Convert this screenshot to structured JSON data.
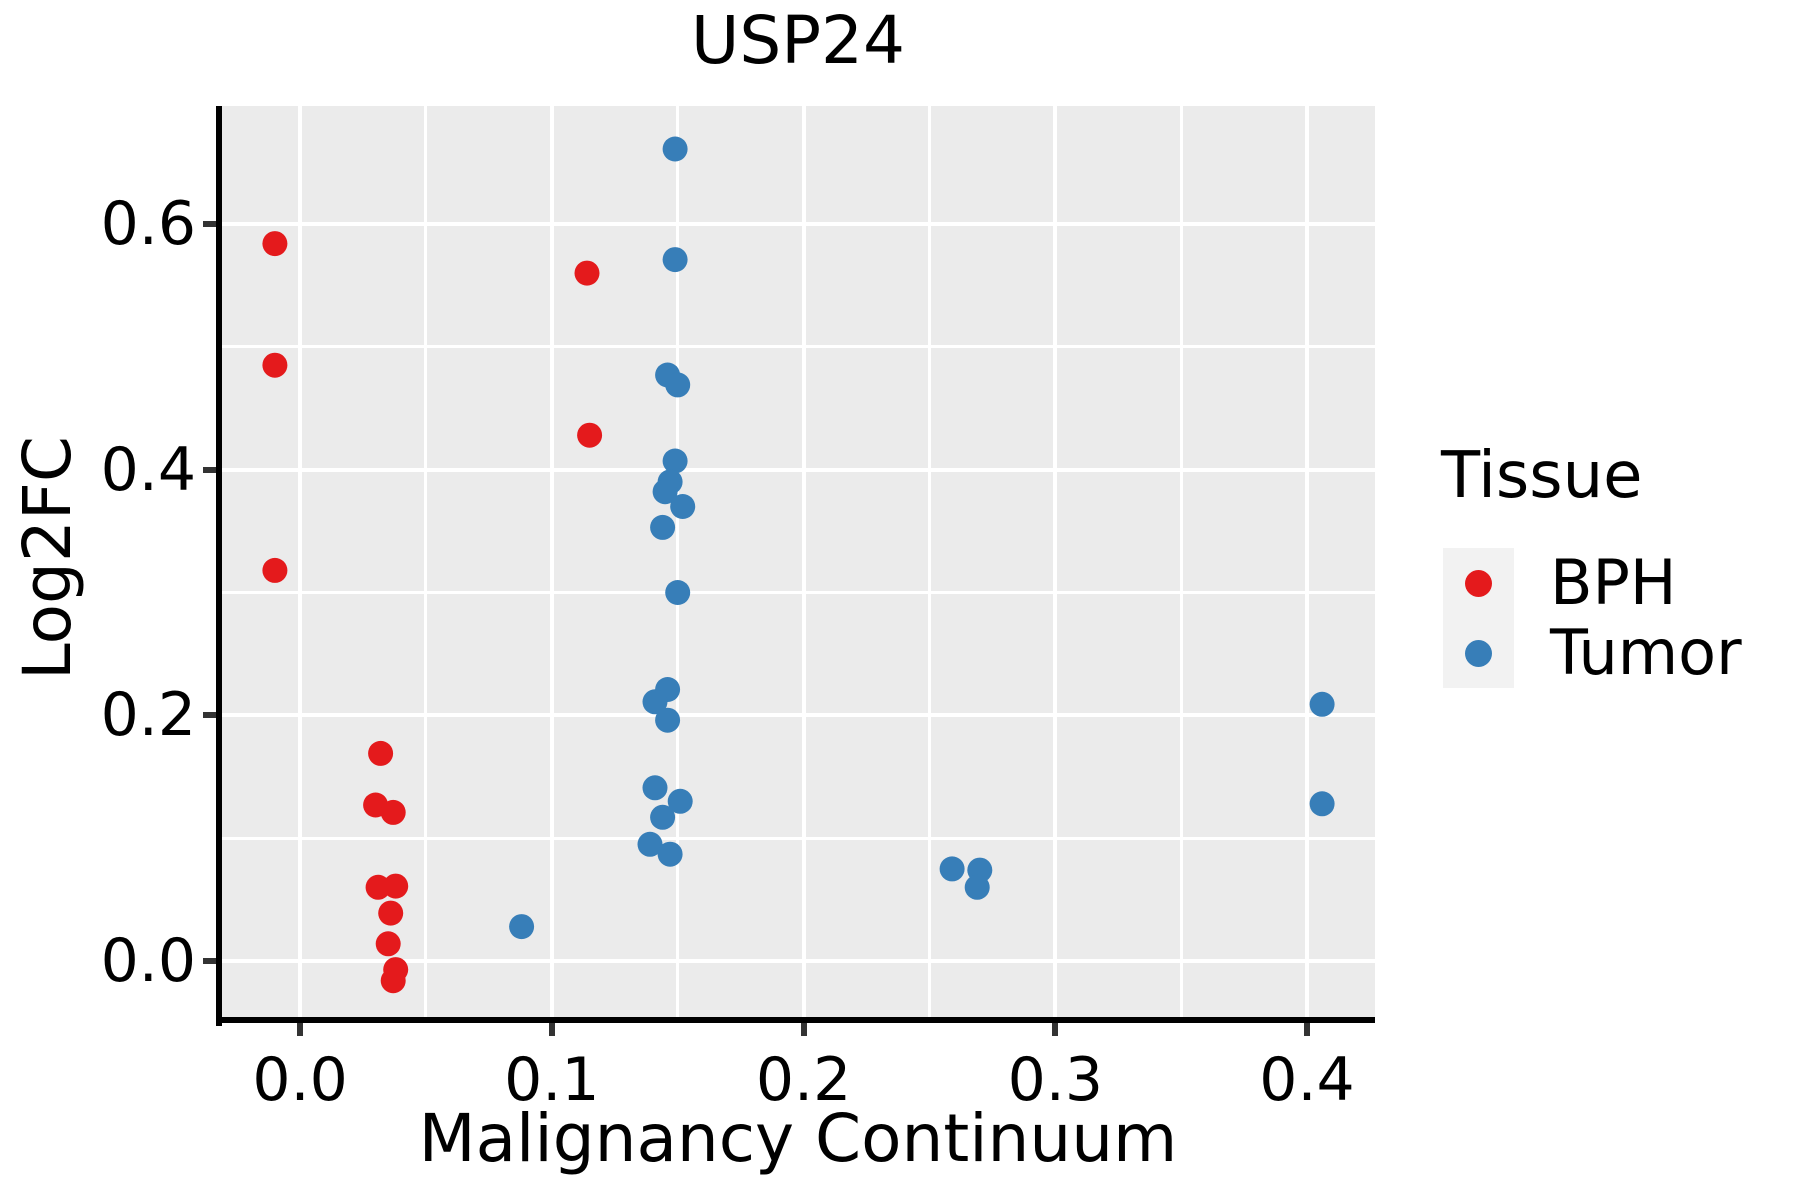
{
  "title": "USP24",
  "axes": {
    "x_label": "Malignancy Continuum",
    "y_label": "Log2FC"
  },
  "legend": {
    "title": "Tissue",
    "items": [
      {
        "label": "BPH",
        "color": "#E41A1C"
      },
      {
        "label": "Tumor",
        "color": "#377EB8"
      }
    ]
  },
  "colors": {
    "panel_background": "#EBEBEB",
    "gridline": "#FFFFFF",
    "legend_key_background": "#F2F2F2",
    "spine": "#000000",
    "tick_mark": "#333333",
    "text": "#000000",
    "bph": "#E41A1C",
    "tumor": "#377EB8"
  },
  "chart_data": {
    "type": "scatter",
    "title": "USP24",
    "xlabel": "Malignancy Continuum",
    "ylabel": "Log2FC",
    "xlim": [
      -0.031,
      0.427
    ],
    "ylim": [
      -0.048,
      0.696
    ],
    "x_ticks": [
      0.0,
      0.1,
      0.2,
      0.3,
      0.4
    ],
    "y_ticks": [
      0.0,
      0.2,
      0.4,
      0.6
    ],
    "x_minor_ticks": [
      0.05,
      0.15,
      0.25,
      0.35
    ],
    "y_minor_ticks": [
      0.1,
      0.3,
      0.5
    ],
    "grid": true,
    "legend_position": "right",
    "legend_title": "Tissue",
    "series": [
      {
        "name": "BPH",
        "color": "#E41A1C",
        "points": [
          [
            -0.01,
            0.584
          ],
          [
            -0.01,
            0.485
          ],
          [
            -0.01,
            0.318
          ],
          [
            0.032,
            0.169
          ],
          [
            0.03,
            0.127
          ],
          [
            0.037,
            0.121
          ],
          [
            0.031,
            0.06
          ],
          [
            0.038,
            0.061
          ],
          [
            0.036,
            0.039
          ],
          [
            0.035,
            0.014
          ],
          [
            0.038,
            -0.007
          ],
          [
            0.037,
            -0.016
          ],
          [
            0.114,
            0.56
          ],
          [
            0.115,
            0.428
          ]
        ]
      },
      {
        "name": "Tumor",
        "color": "#377EB8",
        "points": [
          [
            0.088,
            0.028
          ],
          [
            0.149,
            0.661
          ],
          [
            0.149,
            0.571
          ],
          [
            0.146,
            0.477
          ],
          [
            0.15,
            0.469
          ],
          [
            0.149,
            0.407
          ],
          [
            0.147,
            0.39
          ],
          [
            0.145,
            0.382
          ],
          [
            0.152,
            0.37
          ],
          [
            0.144,
            0.353
          ],
          [
            0.15,
            0.3
          ],
          [
            0.146,
            0.221
          ],
          [
            0.141,
            0.211
          ],
          [
            0.146,
            0.196
          ],
          [
            0.141,
            0.141
          ],
          [
            0.151,
            0.13
          ],
          [
            0.144,
            0.117
          ],
          [
            0.139,
            0.095
          ],
          [
            0.147,
            0.087
          ],
          [
            0.259,
            0.075
          ],
          [
            0.27,
            0.074
          ],
          [
            0.269,
            0.06
          ],
          [
            0.406,
            0.209
          ],
          [
            0.406,
            0.128
          ]
        ]
      }
    ]
  }
}
